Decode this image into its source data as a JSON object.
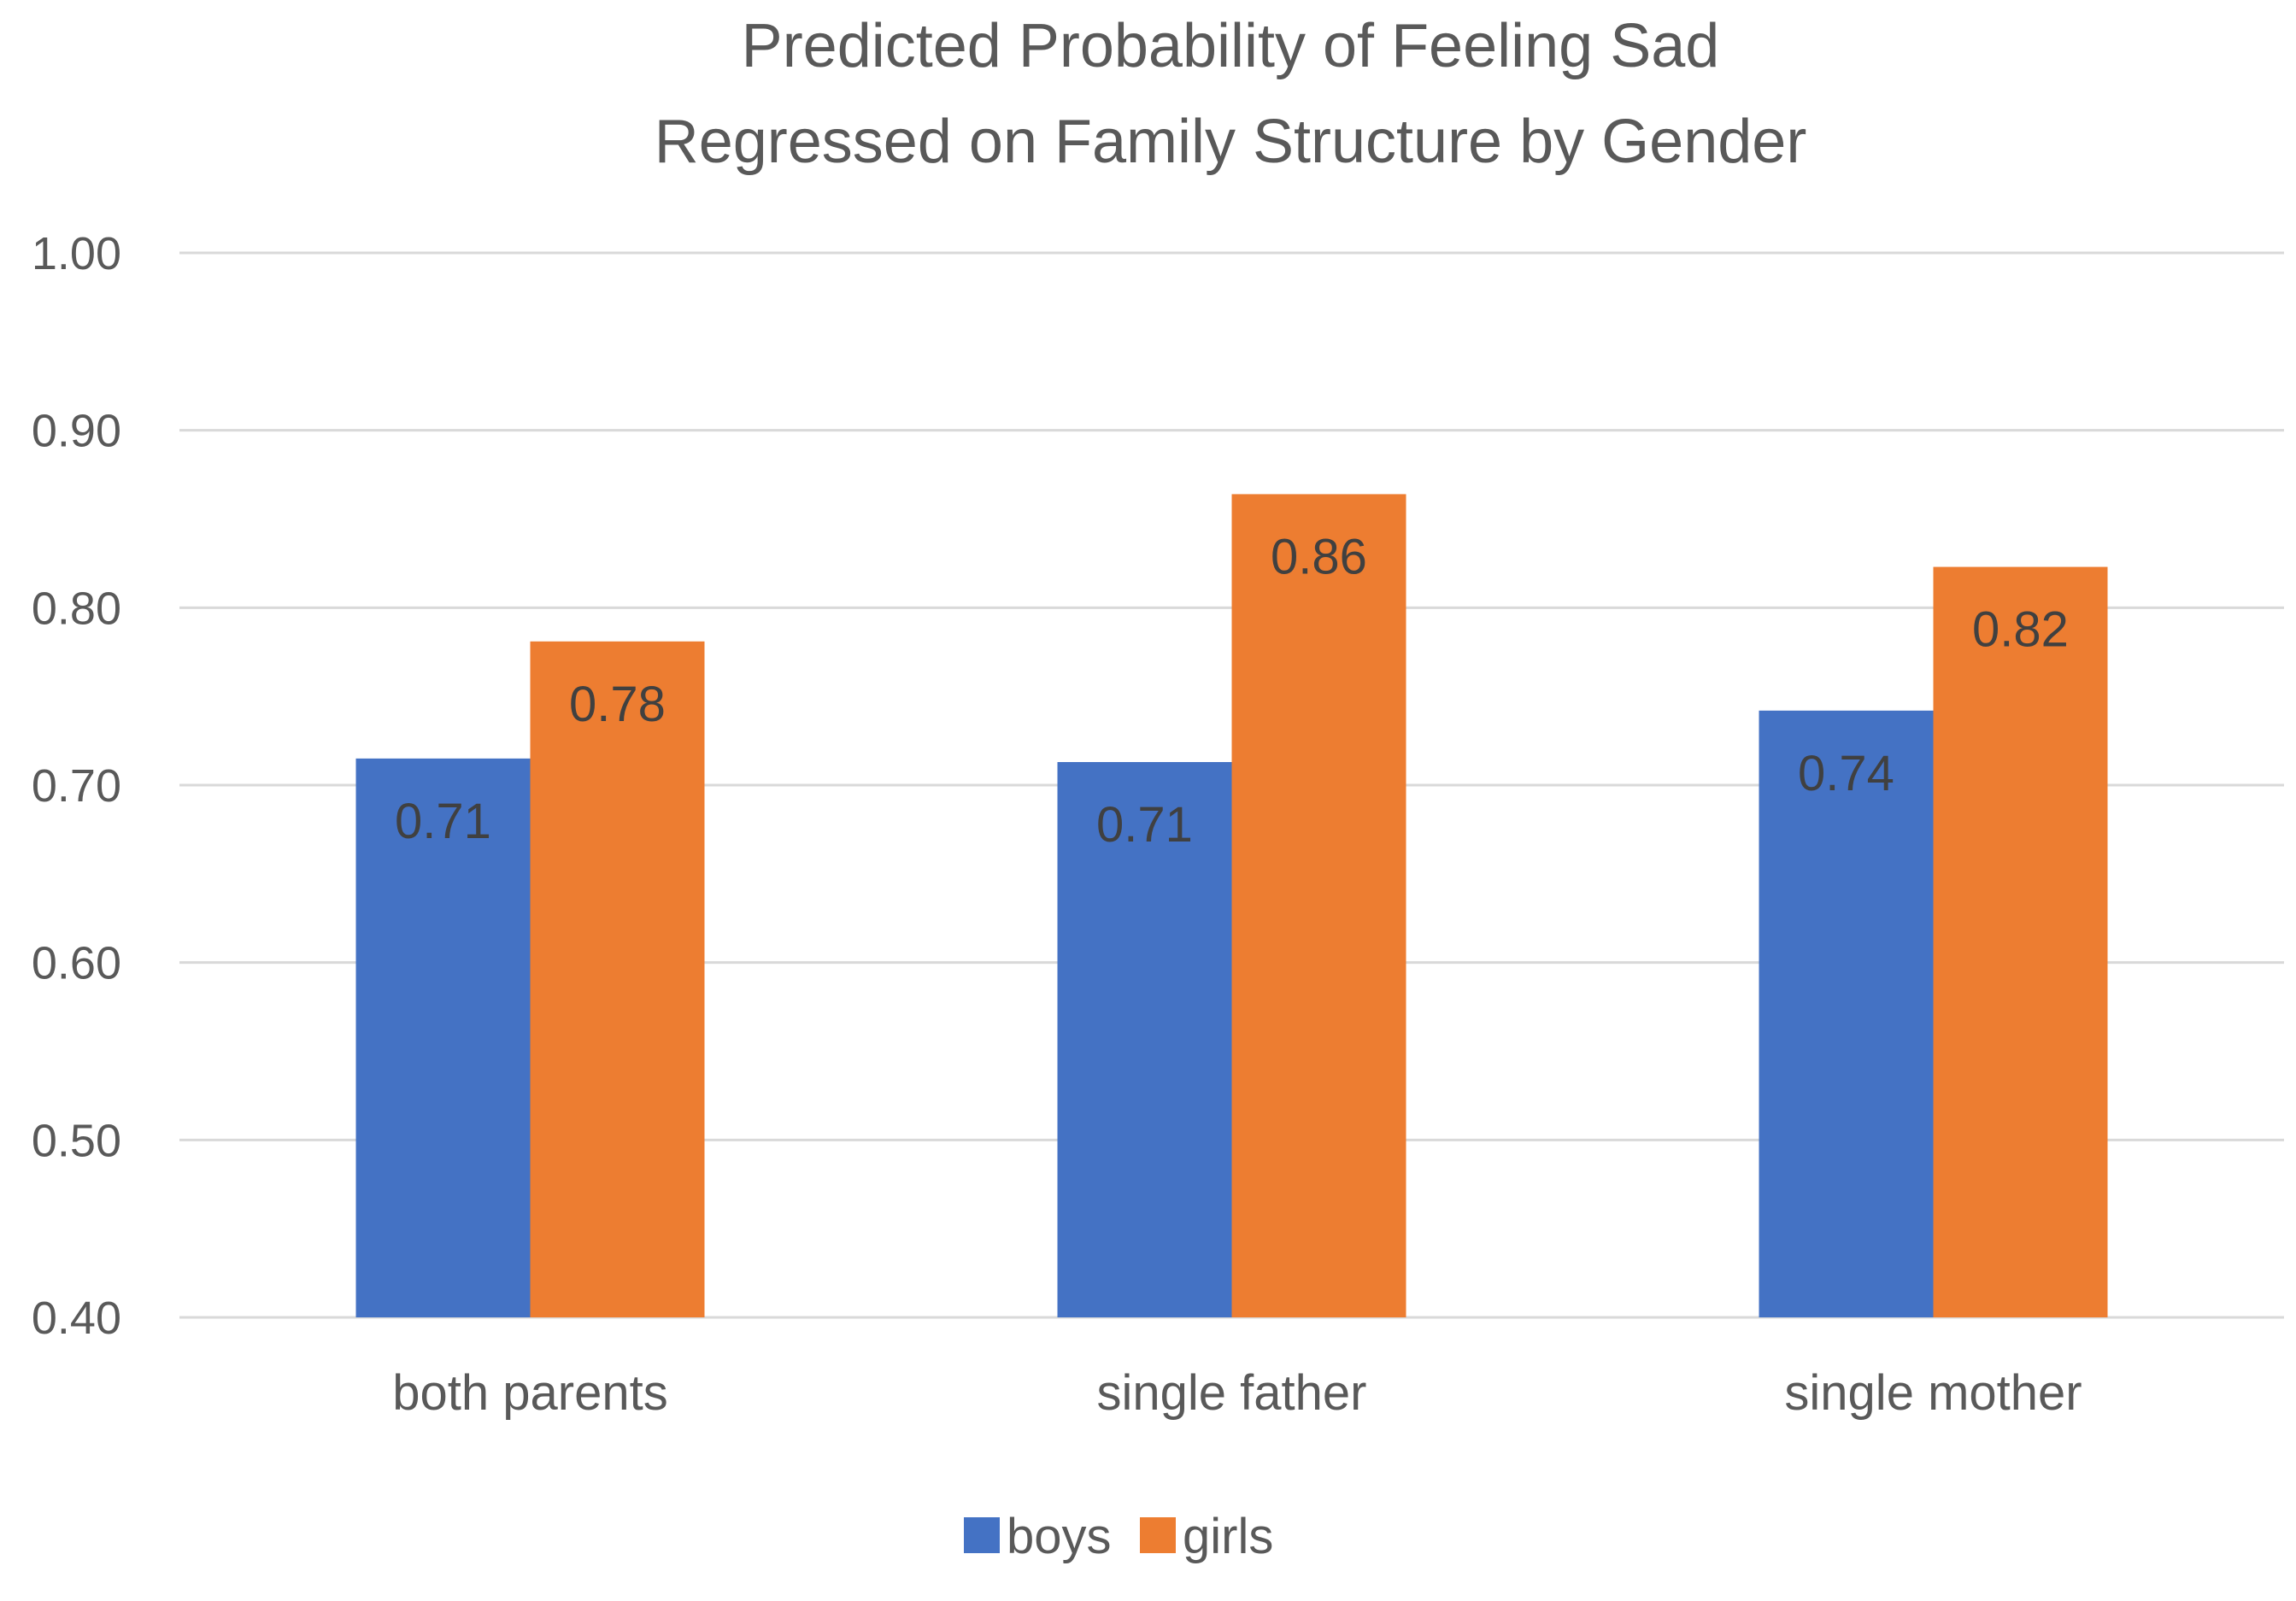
{
  "chart_data": {
    "type": "bar",
    "title": "Predicted Probability of Feeling Sad",
    "subtitle": "Regressed on Family Structure by Gender",
    "categories": [
      "both parents",
      "single father",
      "single mother"
    ],
    "series": [
      {
        "name": "boys",
        "color": "#4472C4",
        "values": [
          0.715,
          0.713,
          0.742
        ],
        "labels": [
          "0.71",
          "0.71",
          "0.74"
        ]
      },
      {
        "name": "girls",
        "color": "#ED7D31",
        "values": [
          0.781,
          0.864,
          0.823
        ],
        "labels": [
          "0.78",
          "0.86",
          "0.82"
        ]
      }
    ],
    "ylim": [
      0.4,
      1.0
    ],
    "yticks": [
      0.4,
      0.5,
      0.6,
      0.7,
      0.8,
      0.9,
      1.0
    ],
    "ytick_labels": [
      "0.40",
      "0.50",
      "0.60",
      "0.70",
      "0.80",
      "0.90",
      "1.00"
    ],
    "grid": true,
    "legend_position": "bottom-center",
    "xlabel": "",
    "ylabel": ""
  }
}
